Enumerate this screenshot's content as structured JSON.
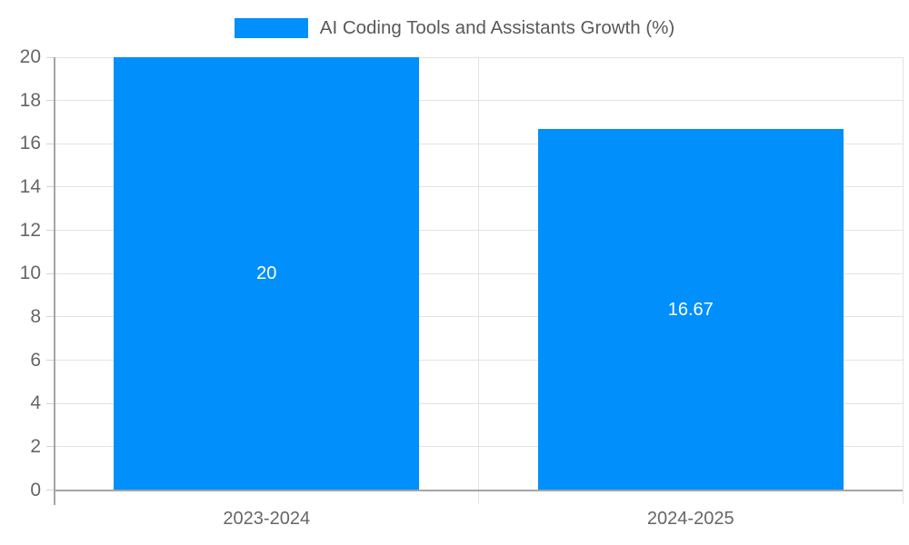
{
  "legend": {
    "label": "AI Coding Tools and Assistants Growth (%)",
    "swatch_color": "#008FFB"
  },
  "chart_data": {
    "type": "bar",
    "title": "AI Coding Tools and Assistants Growth (%)",
    "categories": [
      "2023-2024",
      "2024-2025"
    ],
    "series": [
      {
        "name": "AI Coding Tools and Assistants Growth (%)",
        "values": [
          20,
          16.67
        ]
      }
    ],
    "bar_labels": [
      "20",
      "16.67"
    ],
    "xlabel": "",
    "ylabel": "",
    "ylim": [
      0,
      20
    ],
    "yticks": [
      0,
      2,
      4,
      6,
      8,
      10,
      12,
      14,
      16,
      18,
      20
    ],
    "grid": true,
    "legend_position": "top-center",
    "colors": {
      "bar": "#008FFB",
      "axis": "#a5a5a5",
      "grid": "#e3e3e3",
      "tick": "#d4d4d4",
      "tick_label": "#666666",
      "bar_label": "#ffffff",
      "background": "#ffffff"
    }
  }
}
